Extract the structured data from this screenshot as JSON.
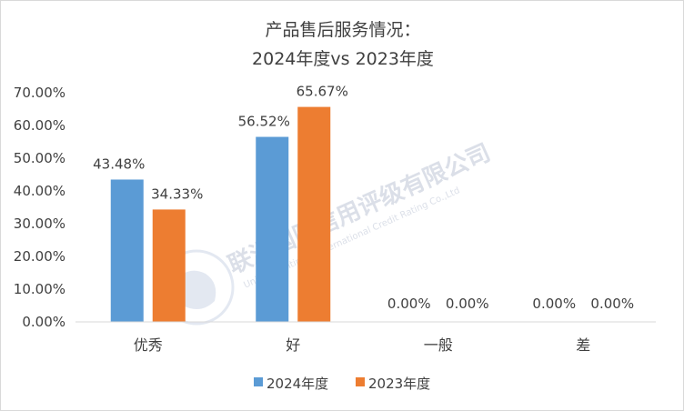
{
  "chart_data": {
    "type": "bar",
    "title_line1": "产品售后服务情况：",
    "title_line2": "2024年度vs 2023年度",
    "categories": [
      "优秀",
      "好",
      "一般",
      "差"
    ],
    "series": [
      {
        "name": "2024年度",
        "color": "#5b9bd5",
        "values": [
          43.48,
          56.52,
          0.0,
          0.0
        ],
        "labels": [
          "43.48%",
          "56.52%",
          "0.00%",
          "0.00%"
        ]
      },
      {
        "name": "2023年度",
        "color": "#ed7d31",
        "values": [
          34.33,
          65.67,
          0.0,
          0.0
        ],
        "labels": [
          "34.33%",
          "65.67%",
          "0.00%",
          "0.00%"
        ]
      }
    ],
    "y_ticks": [
      "0.00%",
      "10.00%",
      "20.00%",
      "30.00%",
      "40.00%",
      "50.00%",
      "60.00%",
      "70.00%"
    ],
    "ylim": [
      0,
      70
    ],
    "grid": false,
    "legend_position": "bottom"
  },
  "watermark": {
    "name_cn": "联洲国际信用评级有限公司",
    "name_en": "United Continent International Credit Rating Co.,Ltd"
  }
}
